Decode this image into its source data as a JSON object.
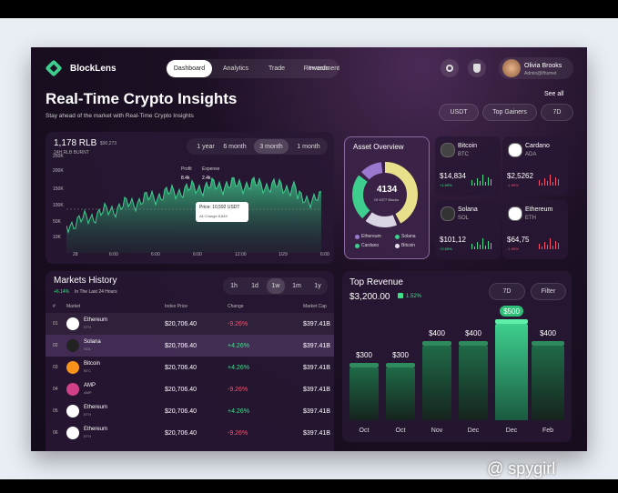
{
  "brand": "BlockLens",
  "nav": [
    "Dashboard",
    "Analytics",
    "Trade",
    "Rewards",
    "Investment"
  ],
  "user": {
    "name": "Olivia Brooks",
    "email": "Admin@lfhsmet"
  },
  "header": {
    "title": "Real-Time Crypto Insights",
    "subtitle": "Stay ahead of the market with Real-Time Crypto Insights",
    "see_all": "See all"
  },
  "filters": [
    "USDT",
    "Top Gainers",
    "7D"
  ],
  "price_chart": {
    "value": "1,178 RLB",
    "change": "$90,273",
    "caption": "24H RLB BURNT",
    "ranges": [
      "1 year",
      "6 month",
      "3 month",
      "1 month"
    ],
    "yticks": [
      "250K",
      "200K",
      "150K",
      "100K",
      "50K",
      "10K"
    ],
    "xticks": [
      "28",
      "6:00",
      "6:00",
      "6:00",
      "12:00",
      "1/29",
      "6:00"
    ],
    "profit": {
      "label": "Profit",
      "value": "8.4k"
    },
    "expense": {
      "label": "Expense",
      "value": "2.4k"
    },
    "tooltip": {
      "price": "Price: 10,592 USDT",
      "change": "All Change 8,84K"
    }
  },
  "asset_overview": {
    "title": "Asset Overview",
    "total": "4134",
    "caption": "Of 4377 Blocks",
    "legend": [
      "Ethereum",
      "Solana",
      "Cardano",
      "Bitcoin"
    ]
  },
  "coins": [
    {
      "name": "Bitcoin",
      "symbol": "BTC",
      "price": "$14,834",
      "change": "+1.99%"
    },
    {
      "name": "Cardano",
      "symbol": "ADA",
      "price": "$2,5262",
      "change": "-1.99%"
    },
    {
      "name": "Solana",
      "symbol": "SOL",
      "price": "$101,12",
      "change": "+2.55%"
    },
    {
      "name": "Ethereum",
      "symbol": "ETH",
      "price": "$64,75",
      "change": "-1.99%"
    }
  ],
  "markets": {
    "title": "Markets History",
    "change": "+6.14%",
    "period": "In The Last 24 Hours",
    "ranges": [
      "1h",
      "1d",
      "1w",
      "1m",
      "1y"
    ],
    "columns": [
      "#",
      "Market",
      "Index Price",
      "Change",
      "Market Cap"
    ],
    "rows": [
      [
        "01",
        "Ethereum",
        "ETH",
        "$20,706.40",
        "-9.26%",
        "$397.41B"
      ],
      [
        "02",
        "Solana",
        "SOL",
        "$20,706.40",
        "+4.26%",
        "$397.41B"
      ],
      [
        "03",
        "Bitcoin",
        "BTC",
        "$20,706.40",
        "+4.26%",
        "$397.41B"
      ],
      [
        "04",
        "AMP",
        "AMP",
        "$20,706.40",
        "-9.26%",
        "$397.41B"
      ],
      [
        "05",
        "Ethereum",
        "ETH",
        "$20,706.40",
        "+4.26%",
        "$397.41B"
      ],
      [
        "06",
        "Ethereum",
        "ETH",
        "$20,706.40",
        "-9.26%",
        "$397.41B"
      ]
    ]
  },
  "top_revenue": {
    "title": "Top Revenue",
    "value": "$3,200.00",
    "change": "1.52%",
    "period": "7D",
    "filter": "Filter",
    "categories": [
      "Oct",
      "Oct",
      "Nov",
      "Dec",
      "Dec",
      "Feb"
    ],
    "values": [
      300,
      300,
      400,
      400,
      500,
      400
    ],
    "value_labels": [
      "$300",
      "$300",
      "$400",
      "$400",
      "$500",
      "$400"
    ]
  },
  "watermark": "@ spygirl"
}
